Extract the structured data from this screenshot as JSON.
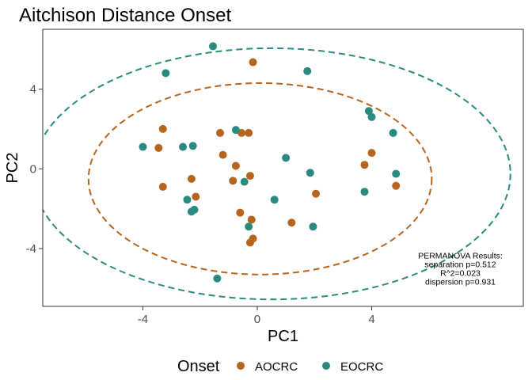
{
  "chart_data": {
    "type": "scatter",
    "title": "Aitchison Distance Onset",
    "xlabel": "PC1",
    "ylabel": "PC2",
    "xlim": [
      -7.5,
      9.3
    ],
    "ylim": [
      -6.9,
      7.0
    ],
    "x_ticks": [
      -4,
      0,
      4
    ],
    "y_ticks": [
      -4,
      0,
      4
    ],
    "x_tick_labels": [
      "-4",
      "0",
      "4"
    ],
    "y_tick_labels": [
      "-4",
      "0",
      "4"
    ],
    "grid": false,
    "legend_position": "bottom",
    "legend_title": "Onset",
    "series": [
      {
        "name": "AOCRC",
        "color": "#B5651D",
        "ellipse": {
          "cx": 0.1,
          "cy": -0.5,
          "rx": 6.0,
          "ry": 4.8,
          "style": "dashed"
        },
        "points": [
          [
            -0.15,
            5.35
          ],
          [
            -3.3,
            2.0
          ],
          [
            -3.45,
            1.05
          ],
          [
            -0.55,
            1.8
          ],
          [
            -0.3,
            1.8
          ],
          [
            -1.3,
            1.8
          ],
          [
            -1.2,
            0.7
          ],
          [
            -0.75,
            0.15
          ],
          [
            -2.3,
            -0.5
          ],
          [
            -0.25,
            -0.35
          ],
          [
            -0.85,
            -0.6
          ],
          [
            -2.15,
            -1.4
          ],
          [
            -3.3,
            -0.9
          ],
          [
            -0.6,
            -2.2
          ],
          [
            -0.2,
            -2.55
          ],
          [
            2.05,
            -1.25
          ],
          [
            1.2,
            -2.7
          ],
          [
            -0.15,
            -3.5
          ],
          [
            -0.25,
            -3.7
          ],
          [
            4.0,
            0.8
          ],
          [
            3.75,
            0.2
          ],
          [
            4.85,
            -0.85
          ]
        ]
      },
      {
        "name": "EOCRC",
        "color": "#2A8A7F",
        "ellipse": {
          "cx": 0.5,
          "cy": -0.25,
          "rx": 8.35,
          "ry": 6.3,
          "style": "dashed"
        },
        "points": [
          [
            -1.55,
            6.15
          ],
          [
            -3.2,
            4.8
          ],
          [
            1.75,
            4.9
          ],
          [
            3.9,
            2.9
          ],
          [
            4.0,
            2.6
          ],
          [
            4.75,
            1.8
          ],
          [
            -0.75,
            1.95
          ],
          [
            -4.0,
            1.1
          ],
          [
            -2.25,
            1.15
          ],
          [
            -2.6,
            1.1
          ],
          [
            1.0,
            0.55
          ],
          [
            1.85,
            -0.2
          ],
          [
            4.85,
            -0.25
          ],
          [
            -0.45,
            -0.65
          ],
          [
            3.75,
            -1.15
          ],
          [
            -2.45,
            -1.55
          ],
          [
            0.6,
            -1.55
          ],
          [
            -2.2,
            -2.05
          ],
          [
            -2.3,
            -2.15
          ],
          [
            -0.3,
            -2.9
          ],
          [
            1.95,
            -2.9
          ],
          [
            -1.4,
            -5.5
          ]
        ]
      }
    ],
    "annotation": [
      "PERMANOVA Results:",
      "separation p=0.512",
      "R^2=0.023",
      "dispersion p=0.931"
    ],
    "annotation_position": {
      "x": 7.1,
      "y": -4.5
    }
  }
}
